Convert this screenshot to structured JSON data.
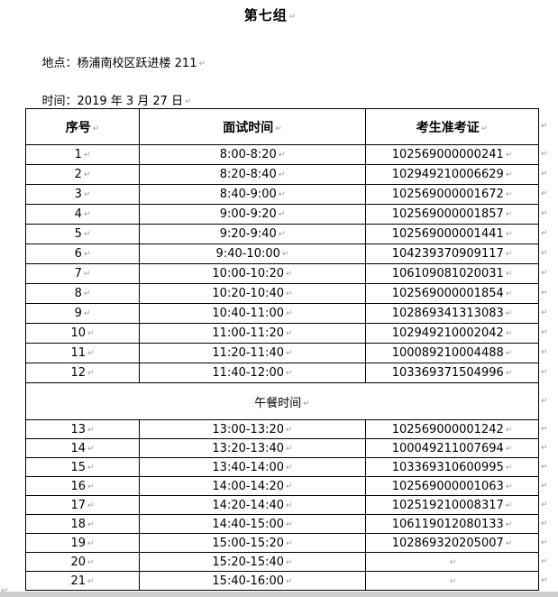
{
  "doc": {
    "title": "第七组",
    "location": "地点：杨浦南校区跃进楼 211",
    "time": "时间：2019 年 3 月 27 日"
  },
  "marks": {
    "paragraph": "↵"
  },
  "colors": {
    "text": "#000000",
    "formatting_mark": "#9a9a9a",
    "bottom_band": "#cdcdcd"
  },
  "table": {
    "headers": [
      "序号",
      "面试时间",
      "考生准考证"
    ],
    "lunch_label": "午餐时间",
    "rows_morning": [
      {
        "no": "1",
        "time": "8:00-8:20",
        "id": "102569000000241"
      },
      {
        "no": "2",
        "time": "8:20-8:40",
        "id": "102949210006629"
      },
      {
        "no": "3",
        "time": "8:40-9:00",
        "id": "102569000001672"
      },
      {
        "no": "4",
        "time": "9:00-9:20",
        "id": "102569000001857"
      },
      {
        "no": "5",
        "time": "9:20-9:40",
        "id": "102569000001441"
      },
      {
        "no": "6",
        "time": "9:40-10:00",
        "id": "104239370909117"
      },
      {
        "no": "7",
        "time": "10:00-10:20",
        "id": "106109081020031"
      },
      {
        "no": "8",
        "time": "10:20-10:40",
        "id": "102569000001854"
      },
      {
        "no": "9",
        "time": "10:40-11:00",
        "id": "102869341313083"
      },
      {
        "no": "10",
        "time": "11:00-11:20",
        "id": "102949210002042"
      },
      {
        "no": "11",
        "time": "11:20-11:40",
        "id": "100089210004488"
      },
      {
        "no": "12",
        "time": "11:40-12:00",
        "id": "103369371504996"
      }
    ],
    "rows_afternoon": [
      {
        "no": "13",
        "time": "13:00-13:20",
        "id": "102569000001242"
      },
      {
        "no": "14",
        "time": "13:20-13:40",
        "id": "100049211007694"
      },
      {
        "no": "15",
        "time": "13:40-14:00",
        "id": "103369310600995"
      },
      {
        "no": "16",
        "time": "14:00-14:20",
        "id": "102569000001063"
      },
      {
        "no": "17",
        "time": "14:20-14:40",
        "id": "102519210008317"
      },
      {
        "no": "18",
        "time": "14:40-15:00",
        "id": "106119012080133"
      },
      {
        "no": "19",
        "time": "15:00-15:20",
        "id": "102869320205007"
      },
      {
        "no": "20",
        "time": "15:20-15:40",
        "id": ""
      },
      {
        "no": "21",
        "time": "15:40-16:00",
        "id": ""
      }
    ]
  }
}
